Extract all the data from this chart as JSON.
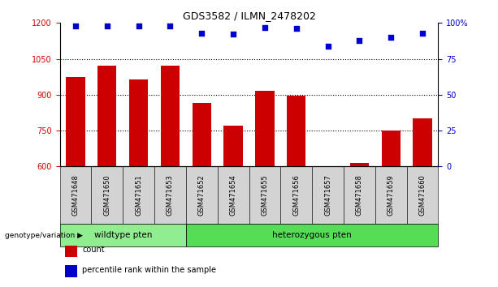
{
  "title": "GDS3582 / ILMN_2478202",
  "categories": [
    "GSM471648",
    "GSM471650",
    "GSM471651",
    "GSM471653",
    "GSM471652",
    "GSM471654",
    "GSM471655",
    "GSM471656",
    "GSM471657",
    "GSM471658",
    "GSM471659",
    "GSM471660"
  ],
  "bar_values": [
    975,
    1020,
    965,
    1020,
    865,
    770,
    915,
    895,
    600,
    615,
    750,
    800
  ],
  "percentile_values": [
    98,
    98,
    98,
    98,
    93,
    92,
    97,
    96,
    84,
    88,
    90,
    93
  ],
  "bar_color": "#cc0000",
  "dot_color": "#0000cc",
  "ylim_left": [
    600,
    1200
  ],
  "ylim_right": [
    0,
    100
  ],
  "yticks_left": [
    600,
    750,
    900,
    1050,
    1200
  ],
  "yticks_right": [
    0,
    25,
    50,
    75,
    100
  ],
  "yticklabels_right": [
    "0",
    "25",
    "50",
    "75",
    "100%"
  ],
  "dotted_gridlines": [
    750,
    900,
    1050
  ],
  "groups": [
    {
      "label": "wildtype pten",
      "start": 0,
      "end": 4,
      "color": "#90ee90"
    },
    {
      "label": "heterozygous pten",
      "start": 4,
      "end": 12,
      "color": "#55dd55"
    }
  ],
  "group_label_prefix": "genotype/variation",
  "legend_items": [
    {
      "label": "count",
      "color": "#cc0000"
    },
    {
      "label": "percentile rank within the sample",
      "color": "#0000cc"
    }
  ],
  "bar_width": 0.6,
  "background_color": "#ffffff",
  "tick_color_left": "#cc0000",
  "tick_color_right": "#0000cc",
  "xticklabel_bg": "#d3d3d3"
}
